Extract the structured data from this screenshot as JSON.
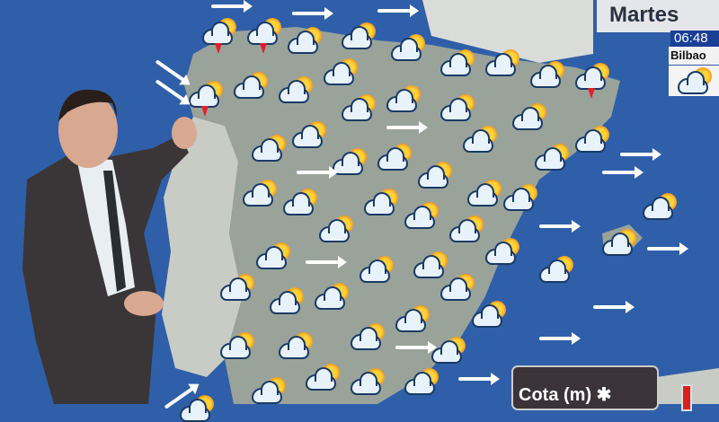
{
  "header": {
    "day": "Martes"
  },
  "city_panel": {
    "time": "06:48",
    "city": "Bilbao",
    "icon": "sun-cloud-icon"
  },
  "legend": {
    "label": "Cota (m)",
    "icon": "snowflake-icon"
  },
  "map": {
    "region": "Iberian Peninsula",
    "icons": [
      "sun-cloud-icon",
      "cloud-storm-icon",
      "wind-arrow-icon"
    ]
  },
  "colors": {
    "sea": "#2f5fa8",
    "land": "#9aa39a",
    "portugal": "#c8ccc4",
    "cloud_outline": "#1b3a66",
    "sun": "#ffd23a"
  }
}
